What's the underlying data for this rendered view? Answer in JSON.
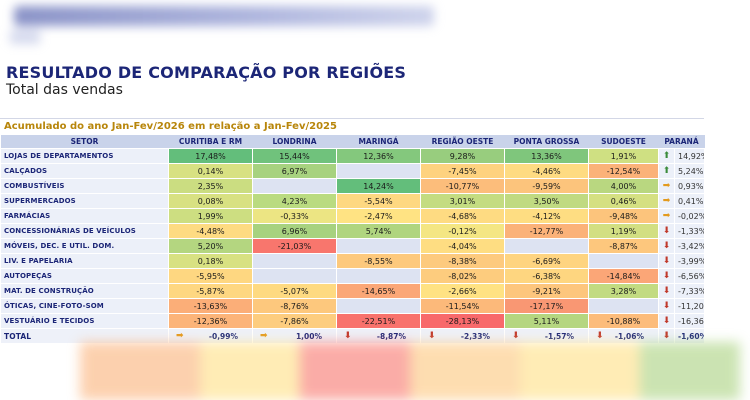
{
  "title": "RESULTADO DE COMPARAÇÃO POR REGIÕES",
  "subtitle": "Total das vendas",
  "accumulated_label": "Acumulado do ano Jan-Fev/2026 em relação a Jan-Fev/2025",
  "columns": [
    "SETOR",
    "CURITIBA E RM",
    "LONDRINA",
    "MARINGÁ",
    "REGIÃO OESTE",
    "PONTA GROSSA",
    "SUDOESTE",
    "PARANÁ"
  ],
  "colors": {
    "strong_green": "#63be7b",
    "green": "#a9d27f",
    "yellow": "#ffe084",
    "orange": "#fbaa77",
    "red": "#f8696b",
    "blank": "#dde3f2"
  },
  "rows": [
    {
      "name": "LOJAS DE DEPARTAMENTOS",
      "cells": [
        {
          "v": "17,48%",
          "c": "#63be7b"
        },
        {
          "v": "15,44%",
          "c": "#70c27c"
        },
        {
          "v": "12,36%",
          "c": "#84c87d"
        },
        {
          "v": "9,28%",
          "c": "#98cd7e"
        },
        {
          "v": "13,36%",
          "c": "#7fc67c"
        },
        {
          "v": "1,91%",
          "c": "#cfe082"
        }
      ],
      "arrow": "up",
      "parana": "14,92%"
    },
    {
      "name": "CALÇADOS",
      "cells": [
        {
          "v": "0,14%",
          "c": "#d8e182"
        },
        {
          "v": "6,97%",
          "c": "#a7d27f"
        },
        {
          "v": "",
          "c": ""
        },
        {
          "v": "-7,45%",
          "c": "#fed27f"
        },
        {
          "v": "-4,46%",
          "c": "#fedb82"
        },
        {
          "v": "-12,54%",
          "c": "#fbb279"
        }
      ],
      "arrow": "up",
      "parana": "5,24%"
    },
    {
      "name": "COMBUSTÍVEIS",
      "cells": [
        {
          "v": "2,35%",
          "c": "#cbdd81"
        },
        {
          "v": "",
          "c": ""
        },
        {
          "v": "14,24%",
          "c": "#63be7b"
        },
        {
          "v": "-10,77%",
          "c": "#fcbd7b"
        },
        {
          "v": "-9,59%",
          "c": "#fcc47c"
        },
        {
          "v": "4,00%",
          "c": "#b9d780"
        }
      ],
      "arrow": "right",
      "parana": "0,93%"
    },
    {
      "name": "SUPERMERCADOS",
      "cells": [
        {
          "v": "0,08%",
          "c": "#d8e182"
        },
        {
          "v": "4,23%",
          "c": "#badb80"
        },
        {
          "v": "-5,54%",
          "c": "#fed881"
        },
        {
          "v": "3,01%",
          "c": "#c4dc81"
        },
        {
          "v": "3,50%",
          "c": "#c0da81"
        },
        {
          "v": "0,46%",
          "c": "#d5e082"
        }
      ],
      "arrow": "right",
      "parana": "0,41%"
    },
    {
      "name": "FARMÁCIAS",
      "cells": [
        {
          "v": "1,99%",
          "c": "#cdde81"
        },
        {
          "v": "-0,33%",
          "c": "#ece583"
        },
        {
          "v": "-2,47%",
          "c": "#ffe383"
        },
        {
          "v": "-4,68%",
          "c": "#fedb82"
        },
        {
          "v": "-4,12%",
          "c": "#fedd82"
        },
        {
          "v": "-9,48%",
          "c": "#fcc47c"
        }
      ],
      "arrow": "right",
      "parana": "-0,02%"
    },
    {
      "name": "CONCESSIONÁRIAS DE VEÍCULOS",
      "cells": [
        {
          "v": "-4,48%",
          "c": "#fedb82"
        },
        {
          "v": "6,96%",
          "c": "#a7d27f"
        },
        {
          "v": "5,74%",
          "c": "#b0d57f"
        },
        {
          "v": "-0,12%",
          "c": "#f4e683"
        },
        {
          "v": "-12,77%",
          "c": "#fbb279"
        },
        {
          "v": "1,19%",
          "c": "#d2df82"
        }
      ],
      "arrow": "down",
      "parana": "-1,33%"
    },
    {
      "name": "MÓVEIS, DEC. E UTIL. DOM.",
      "cells": [
        {
          "v": "5,20%",
          "c": "#b4d680"
        },
        {
          "v": "-21,03%",
          "c": "#f8766d"
        },
        {
          "v": "",
          "c": ""
        },
        {
          "v": "-4,04%",
          "c": "#fedd82"
        },
        {
          "v": "",
          "c": ""
        },
        {
          "v": "-8,87%",
          "c": "#fdc77d"
        }
      ],
      "arrow": "down",
      "parana": "-3,42%"
    },
    {
      "name": "LIV. E PAPELARIA",
      "cells": [
        {
          "v": "0,18%",
          "c": "#d8e182"
        },
        {
          "v": "",
          "c": ""
        },
        {
          "v": "-8,55%",
          "c": "#fdc97d"
        },
        {
          "v": "-8,38%",
          "c": "#fdca7e"
        },
        {
          "v": "-6,69%",
          "c": "#fed480"
        },
        {
          "v": "",
          "c": ""
        }
      ],
      "arrow": "down",
      "parana": "-3,99%"
    },
    {
      "name": "AUTOPEÇAS",
      "cells": [
        {
          "v": "-5,95%",
          "c": "#fed781"
        },
        {
          "v": "",
          "c": ""
        },
        {
          "v": "",
          "c": ""
        },
        {
          "v": "-8,02%",
          "c": "#fdcc7e"
        },
        {
          "v": "-6,38%",
          "c": "#fed680"
        },
        {
          "v": "-14,84%",
          "c": "#fba677"
        }
      ],
      "arrow": "down",
      "parana": "-6,56%"
    },
    {
      "name": "MAT. DE CONSTRUÇÃO",
      "cells": [
        {
          "v": "-5,87%",
          "c": "#fed781"
        },
        {
          "v": "-5,07%",
          "c": "#feda81"
        },
        {
          "v": "-14,65%",
          "c": "#fba777"
        },
        {
          "v": "-2,66%",
          "c": "#ffe283"
        },
        {
          "v": "-9,21%",
          "c": "#fdc67d"
        },
        {
          "v": "3,28%",
          "c": "#c2db81"
        }
      ],
      "arrow": "down",
      "parana": "-7,33%"
    },
    {
      "name": "ÓTICAS, CINE-FOTO-SOM",
      "cells": [
        {
          "v": "-13,63%",
          "c": "#fbae78"
        },
        {
          "v": "-8,76%",
          "c": "#fdc87d"
        },
        {
          "v": "",
          "c": ""
        },
        {
          "v": "-11,54%",
          "c": "#fcb97a"
        },
        {
          "v": "-17,17%",
          "c": "#f99773"
        },
        {
          "v": "",
          "c": ""
        }
      ],
      "arrow": "down",
      "parana": "-11,20%"
    },
    {
      "name": "VESTUÁRIO E TECIDOS",
      "cells": [
        {
          "v": "-12,36%",
          "c": "#fcb479"
        },
        {
          "v": "-7,86%",
          "c": "#fdcd7f"
        },
        {
          "v": "-22,51%",
          "c": "#f8726c"
        },
        {
          "v": "-28,13%",
          "c": "#f8696b"
        },
        {
          "v": "5,11%",
          "c": "#b5d680"
        },
        {
          "v": "-10,88%",
          "c": "#fcbc7b"
        }
      ],
      "arrow": "down",
      "parana": "-16,36%"
    }
  ],
  "total": {
    "name": "TOTAL",
    "cells": [
      {
        "v": "-0,99%",
        "a": "right"
      },
      {
        "v": "1,00%",
        "a": "right"
      },
      {
        "v": "-8,87%",
        "a": "down"
      },
      {
        "v": "-2,33%",
        "a": "down"
      },
      {
        "v": "-1,57%",
        "a": "down"
      },
      {
        "v": "-1,06%",
        "a": "down"
      }
    ],
    "arrow": "down",
    "parana": "-1,60%"
  }
}
